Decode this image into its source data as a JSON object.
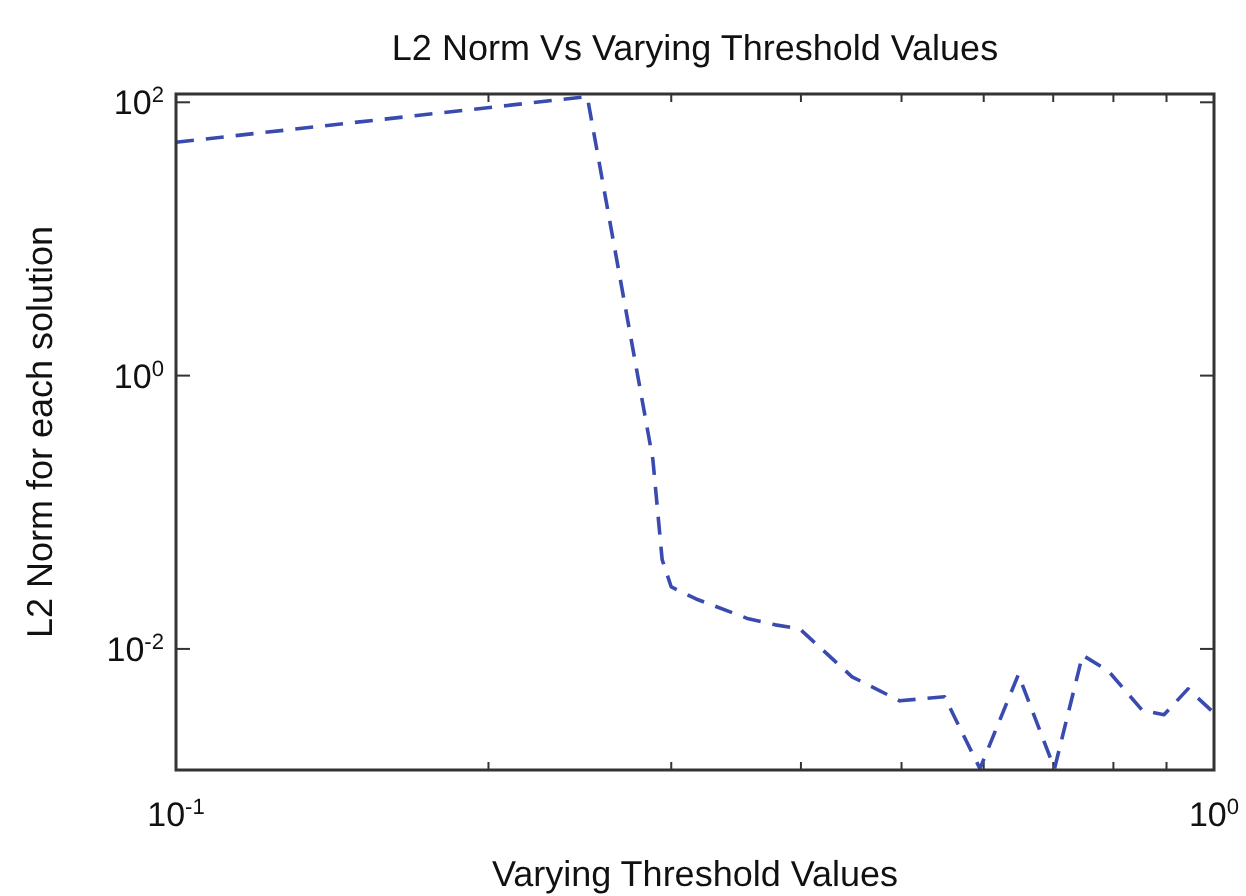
{
  "chart_data": {
    "type": "line",
    "title": "L2 Norm Vs Varying Threshold Values",
    "xlabel": "Varying Threshold Values",
    "ylabel": "L2 Norm for each solution",
    "log": "xy",
    "grid": false,
    "line_style": "dashed",
    "marker": "none",
    "xlim": [
      0.1,
      1
    ],
    "ylim": [
      0.0013,
      115
    ],
    "xticks": [
      {
        "value": 0.1,
        "label": "10$^{-1}$"
      },
      {
        "value": 0.2,
        "label": null
      },
      {
        "value": 0.3,
        "label": null
      },
      {
        "value": 0.4,
        "label": null
      },
      {
        "value": 0.5,
        "label": null
      },
      {
        "value": 0.6,
        "label": null
      },
      {
        "value": 0.7,
        "label": null
      },
      {
        "value": 0.8,
        "label": null
      },
      {
        "value": 0.9,
        "label": null
      },
      {
        "value": 1,
        "label": "10$^{0}$"
      }
    ],
    "yticks": [
      {
        "value": 0.01,
        "label": "10$^{-2}$"
      },
      {
        "value": 1,
        "label": "10$^{0}$"
      },
      {
        "value": 100,
        "label": "10$^{2}$"
      }
    ],
    "series": [
      {
        "color": "#3a4bb0",
        "x": [
          0.1,
          0.249,
          0.288,
          0.294,
          0.3,
          0.317,
          0.356,
          0.378,
          0.399,
          0.448,
          0.498,
          0.55,
          0.595,
          0.648,
          0.702,
          0.747,
          0.791,
          0.853,
          0.895,
          0.944,
          1
        ],
        "values": [
          51,
          110,
          0.244,
          0.045,
          0.0284,
          0.0232,
          0.0166,
          0.015,
          0.014,
          0.00625,
          0.00417,
          0.00447,
          0.00133,
          0.0065,
          0.00133,
          0.009,
          0.0069,
          0.00355,
          0.0033,
          0.0051,
          0.0034
        ]
      }
    ]
  }
}
